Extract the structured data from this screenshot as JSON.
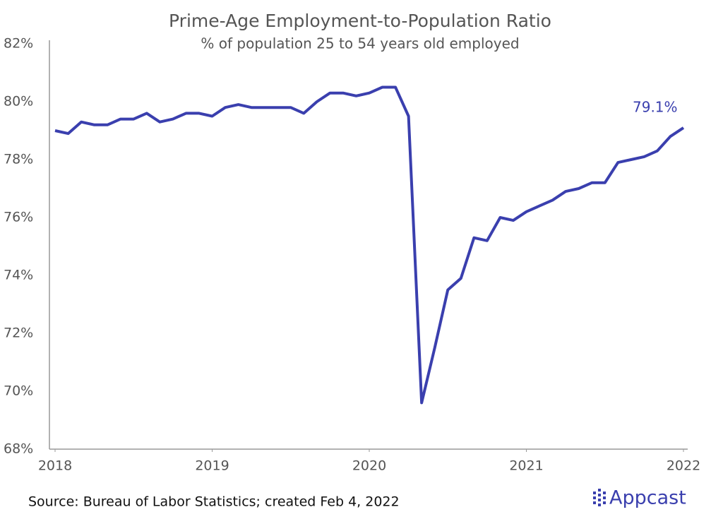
{
  "chart_data": {
    "type": "line",
    "title": "Prime-Age Employment-to-Population Ratio",
    "subtitle": "% of population 25 to 54 years old employed",
    "x": [
      2018,
      2018.0833,
      2018.1667,
      2018.25,
      2018.3333,
      2018.4167,
      2018.5,
      2018.5833,
      2018.6667,
      2018.75,
      2018.8333,
      2018.9167,
      2019,
      2019.0833,
      2019.1667,
      2019.25,
      2019.3333,
      2019.4167,
      2019.5,
      2019.5833,
      2019.6667,
      2019.75,
      2019.8333,
      2019.9167,
      2020,
      2020.0833,
      2020.1667,
      2020.25,
      2020.3333,
      2020.4167,
      2020.5,
      2020.5833,
      2020.6667,
      2020.75,
      2020.8333,
      2020.9167,
      2021,
      2021.0833,
      2021.1667,
      2021.25,
      2021.3333,
      2021.4167,
      2021.5,
      2021.5833,
      2021.6667,
      2021.75,
      2021.8333,
      2021.9167,
      2022
    ],
    "series": [
      {
        "name": "Prime-age employment-to-population ratio",
        "color": "#3a3fae",
        "values": [
          79.0,
          78.9,
          79.3,
          79.2,
          79.2,
          79.4,
          79.4,
          79.6,
          79.3,
          79.4,
          79.6,
          79.6,
          79.5,
          79.8,
          79.9,
          79.8,
          79.8,
          79.8,
          79.8,
          79.6,
          80.0,
          80.3,
          80.3,
          80.2,
          80.3,
          80.5,
          80.5,
          79.5,
          69.6,
          71.5,
          73.5,
          73.9,
          75.3,
          75.2,
          76.0,
          75.9,
          76.2,
          76.4,
          76.6,
          76.9,
          77.0,
          77.2,
          77.2,
          77.9,
          78.0,
          78.1,
          78.3,
          78.8,
          79.1
        ]
      }
    ],
    "annotations": [
      {
        "text": "79.1%",
        "x": 2022,
        "y": 79.1
      }
    ],
    "xlim": [
      2018,
      2022
    ],
    "xticks": [
      2018,
      2019,
      2020,
      2021,
      2022
    ],
    "ylim": [
      68,
      82
    ],
    "yticks": [
      {
        "value": 68,
        "label": "68%"
      },
      {
        "value": 70,
        "label": "70%"
      },
      {
        "value": 72,
        "label": "72%"
      },
      {
        "value": 74,
        "label": "74%"
      },
      {
        "value": 76,
        "label": "76%"
      },
      {
        "value": 78,
        "label": "78%"
      },
      {
        "value": 80,
        "label": "80%"
      },
      {
        "value": 82,
        "label": "82%"
      }
    ],
    "grid": false,
    "source": "Source: Bureau of Labor Statistics; created Feb 4, 2022",
    "brand": "Appcast"
  }
}
